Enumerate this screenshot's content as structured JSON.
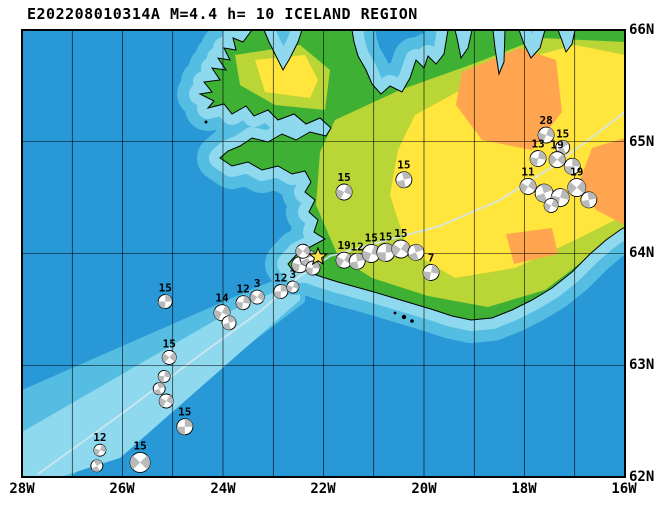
{
  "title": "E202208010314A M=4.4 h= 10 ICELAND REGION",
  "map": {
    "lon_min": 16,
    "lon_max": 28,
    "lat_min": 62,
    "lat_max": 66,
    "grid_step_deg": 1,
    "x_axis_labels": [
      "28W",
      "26W",
      "24W",
      "22W",
      "20W",
      "18W",
      "16W"
    ],
    "y_axis_labels": [
      "66N",
      "65N",
      "64N",
      "63N",
      "62N"
    ]
  },
  "colors": {
    "ocean_deep": "#2899d6",
    "ocean_mid": "#55bce2",
    "ocean_shallow": "#8fd9ee",
    "land_low": "#3eb134",
    "land_mid": "#b9d636",
    "land_high": "#ffe53c",
    "land_top": "#ffa54f",
    "mechanism_fill": "#b9b9b9",
    "mechanism_bg": "#ffffff",
    "star_fill": "#ffe24a",
    "boundary_line": "#d4e6f0",
    "frame": "#000000"
  },
  "star": {
    "lon": 22.11,
    "lat": 63.97
  },
  "events": [
    {
      "lon": 26.45,
      "lat": 62.24,
      "r": 6,
      "rot": 20,
      "label": "12"
    },
    {
      "lon": 26.51,
      "lat": 62.1,
      "r": 6,
      "rot": -30
    },
    {
      "lon": 25.65,
      "lat": 62.13,
      "r": 10,
      "rot": 45,
      "label": "15"
    },
    {
      "lon": 24.76,
      "lat": 62.45,
      "r": 8,
      "rot": 0,
      "label": "15"
    },
    {
      "lon": 25.13,
      "lat": 62.68,
      "r": 7,
      "rot": 30
    },
    {
      "lon": 25.27,
      "lat": 62.79,
      "r": 6,
      "rot": -20
    },
    {
      "lon": 25.17,
      "lat": 62.9,
      "r": 6,
      "rot": 10
    },
    {
      "lon": 25.07,
      "lat": 63.07,
      "r": 7,
      "rot": 40,
      "label": "15"
    },
    {
      "lon": 25.15,
      "lat": 63.57,
      "r": 7,
      "rot": 0,
      "label": "15"
    },
    {
      "lon": 24.02,
      "lat": 63.47,
      "r": 8,
      "rot": 25,
      "label": "14"
    },
    {
      "lon": 23.88,
      "lat": 63.38,
      "r": 7,
      "rot": -15
    },
    {
      "lon": 23.6,
      "lat": 63.56,
      "r": 7,
      "rot": 10,
      "label": "12"
    },
    {
      "lon": 23.32,
      "lat": 63.61,
      "r": 7,
      "rot": 35,
      "label": "3"
    },
    {
      "lon": 22.85,
      "lat": 63.66,
      "r": 7,
      "rot": 0,
      "label": "12"
    },
    {
      "lon": 22.61,
      "lat": 63.7,
      "r": 6,
      "rot": 20,
      "label": "3"
    },
    {
      "lon": 22.47,
      "lat": 63.9,
      "r": 8,
      "rot": 15
    },
    {
      "lon": 22.31,
      "lat": 63.96,
      "r": 8,
      "rot": -25
    },
    {
      "lon": 22.41,
      "lat": 64.02,
      "r": 7,
      "rot": 40
    },
    {
      "lon": 22.21,
      "lat": 63.87,
      "r": 7,
      "rot": 5
    },
    {
      "lon": 21.59,
      "lat": 63.94,
      "r": 8,
      "rot": 30,
      "label": "19"
    },
    {
      "lon": 21.33,
      "lat": 63.93,
      "r": 8,
      "rot": -10,
      "label": "12"
    },
    {
      "lon": 21.05,
      "lat": 64.0,
      "r": 9,
      "rot": 20,
      "label": "15"
    },
    {
      "lon": 20.76,
      "lat": 64.01,
      "r": 9,
      "rot": 0,
      "label": "15"
    },
    {
      "lon": 20.46,
      "lat": 64.04,
      "r": 9,
      "rot": 35,
      "label": "15"
    },
    {
      "lon": 20.16,
      "lat": 64.01,
      "r": 8,
      "rot": -20
    },
    {
      "lon": 19.86,
      "lat": 63.83,
      "r": 8,
      "rot": 10,
      "label": "7"
    },
    {
      "lon": 21.59,
      "lat": 64.55,
      "r": 8,
      "rot": 25,
      "label": "15"
    },
    {
      "lon": 20.4,
      "lat": 64.66,
      "r": 8,
      "rot": -15,
      "label": "15"
    },
    {
      "lon": 17.57,
      "lat": 65.06,
      "r": 8,
      "rot": 20,
      "label": "28"
    },
    {
      "lon": 17.24,
      "lat": 64.95,
      "r": 7,
      "rot": -30,
      "label": "15"
    },
    {
      "lon": 17.73,
      "lat": 64.85,
      "r": 8,
      "rot": 10,
      "label": "13"
    },
    {
      "lon": 17.35,
      "lat": 64.84,
      "r": 8,
      "rot": 45,
      "label": "19"
    },
    {
      "lon": 17.05,
      "lat": 64.78,
      "r": 8,
      "rot": 0
    },
    {
      "lon": 17.93,
      "lat": 64.6,
      "r": 8,
      "rot": 30,
      "label": "11"
    },
    {
      "lon": 17.61,
      "lat": 64.54,
      "r": 9,
      "rot": -20
    },
    {
      "lon": 17.29,
      "lat": 64.5,
      "r": 9,
      "rot": 15
    },
    {
      "lon": 16.96,
      "lat": 64.59,
      "r": 9,
      "rot": 40,
      "label": "19"
    },
    {
      "lon": 16.72,
      "lat": 64.48,
      "r": 8,
      "rot": -10
    },
    {
      "lon": 17.47,
      "lat": 64.43,
      "r": 7,
      "rot": 25
    }
  ]
}
